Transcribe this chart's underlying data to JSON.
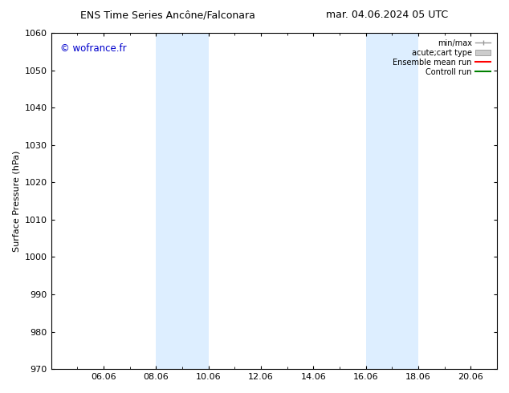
{
  "title_left": "ENS Time Series Ancône/Falconara",
  "title_right": "mar. 04.06.2024 05 UTC",
  "ylabel": "Surface Pressure (hPa)",
  "ylim": [
    970,
    1060
  ],
  "yticks": [
    970,
    980,
    990,
    1000,
    1010,
    1020,
    1030,
    1040,
    1050,
    1060
  ],
  "x_tick_labels": [
    "06.06",
    "08.06",
    "10.06",
    "12.06",
    "14.06",
    "16.06",
    "18.06",
    "20.06"
  ],
  "x_tick_positions": [
    2.0,
    4.0,
    6.0,
    8.0,
    10.0,
    12.0,
    14.0,
    16.0
  ],
  "xlim": [
    0,
    17.0
  ],
  "shaded_regions": [
    {
      "x_start": 4.0,
      "x_end": 6.0
    },
    {
      "x_start": 12.0,
      "x_end": 14.0
    }
  ],
  "shade_color": "#ddeeff",
  "watermark": "© wofrance.fr",
  "watermark_color": "#0000cc",
  "legend_labels": [
    "min/max",
    "acute;cart type",
    "Ensemble mean run",
    "Controll run"
  ],
  "legend_colors": [
    "#999999",
    "#cccccc",
    "#ff0000",
    "#008000"
  ],
  "bg_color": "#ffffff",
  "plot_bg_color": "#ffffff",
  "title_fontsize": 9,
  "axis_fontsize": 8,
  "tick_fontsize": 8,
  "ylabel_fontsize": 8
}
